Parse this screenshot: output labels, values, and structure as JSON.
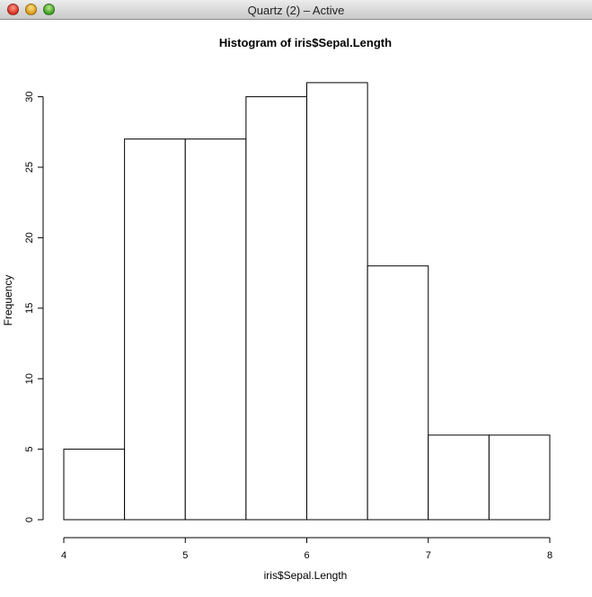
{
  "window": {
    "title": "Quartz (2) – Active",
    "buttons": {
      "close": "close",
      "minimize": "minimize",
      "zoom": "zoom"
    }
  },
  "chart_data": {
    "type": "bar",
    "title": "Histogram of iris$Sepal.Length",
    "xlabel": "iris$Sepal.Length",
    "ylabel": "Frequency",
    "bins": [
      {
        "x0": 4.0,
        "x1": 4.5,
        "count": 5
      },
      {
        "x0": 4.5,
        "x1": 5.0,
        "count": 27
      },
      {
        "x0": 5.0,
        "x1": 5.5,
        "count": 27
      },
      {
        "x0": 5.5,
        "x1": 6.0,
        "count": 30
      },
      {
        "x0": 6.0,
        "x1": 6.5,
        "count": 31
      },
      {
        "x0": 6.5,
        "x1": 7.0,
        "count": 18
      },
      {
        "x0": 7.0,
        "x1": 7.5,
        "count": 6
      },
      {
        "x0": 7.5,
        "x1": 8.0,
        "count": 6
      }
    ],
    "xlim": [
      4,
      8
    ],
    "ylim": [
      0,
      31
    ],
    "xticks": [
      4,
      5,
      6,
      7,
      8
    ],
    "yticks": [
      0,
      5,
      10,
      15,
      20,
      25,
      30
    ],
    "bar_fill": "#ffffff",
    "bar_stroke": "#000000",
    "grid": false,
    "legend": "none"
  }
}
